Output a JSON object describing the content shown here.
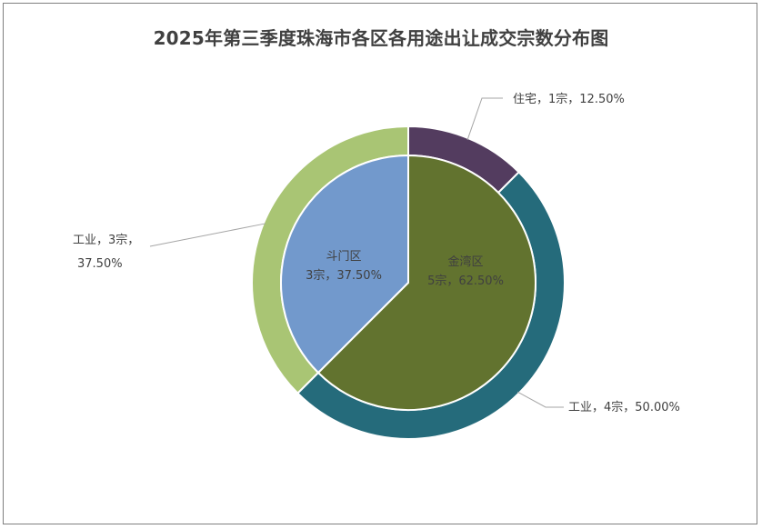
{
  "chart_data": {
    "type": "pie",
    "subtype": "double-ring (sunburst)",
    "title": "2025年第三季度珠海市各区各用途出让成交宗数分布图",
    "inner": [
      {
        "name": "金湾区",
        "value": 5,
        "percent": "62.50%",
        "label_line1": "金湾区",
        "label_line2": "5宗，62.50%",
        "color": "#62732f"
      },
      {
        "name": "斗门区",
        "value": 3,
        "percent": "37.50%",
        "label_line1": "斗门区",
        "label_line2": "3宗，37.50%",
        "color": "#7299cc"
      }
    ],
    "outer": [
      {
        "name": "住宅",
        "parent": "金湾区",
        "value": 1,
        "percent": "12.50%",
        "label": "住宅，1宗，12.50%",
        "color": "#533c5f"
      },
      {
        "name": "工业",
        "parent": "金湾区",
        "value": 4,
        "percent": "50.00%",
        "label": "工业，4宗，50.00%",
        "color": "#256b7b"
      },
      {
        "name": "工业",
        "parent": "斗门区",
        "value": 3,
        "percent": "37.50%",
        "label_line1": "工业，3宗，",
        "label_line2": "37.50%",
        "color": "#a9c574"
      }
    ]
  },
  "colors": {
    "leader_line": "#a6a6a6",
    "slice_border": "#ffffff",
    "frame_border": "#7f7f7f"
  }
}
